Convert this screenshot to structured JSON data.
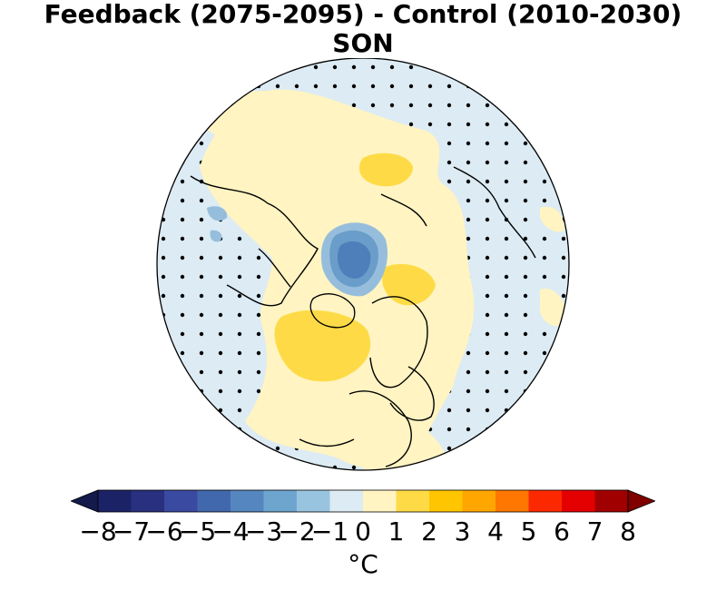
{
  "title": {
    "line1": "Feedback (2075-2095) - Control (2010-2030)",
    "line2": "SON"
  },
  "map": {
    "projection": "north-polar-stereographic",
    "field": "temperature difference",
    "stippling": "dots mark grid points (non-significant)",
    "colors": {
      "ocean_background": "#dcebf4",
      "plus_0_1": "#fff4c2",
      "plus_1_2": "#fedb46",
      "minus_1_2": "#96bedc",
      "minus_2_3": "#6a9dc9",
      "minus_3_4": "#4e7fba",
      "coastline": "#000000"
    }
  },
  "colorbar": {
    "unit": "°C",
    "extend": "both",
    "tick_labels": [
      "−8",
      "−7",
      "−6",
      "−5",
      "−4",
      "−3",
      "−2",
      "−1",
      "0",
      "1",
      "2",
      "3",
      "4",
      "5",
      "6",
      "7",
      "8"
    ],
    "colors": [
      "#1c2266",
      "#28307f",
      "#3a4aa0",
      "#4168ac",
      "#5586c0",
      "#6ea5cf",
      "#99c4e0",
      "#dcebf4",
      "#fff4c2",
      "#fedb46",
      "#ffc500",
      "#ffa600",
      "#ff7700",
      "#fc2800",
      "#e40000",
      "#a00000"
    ],
    "under_color": "#141a4a",
    "over_color": "#800000"
  }
}
